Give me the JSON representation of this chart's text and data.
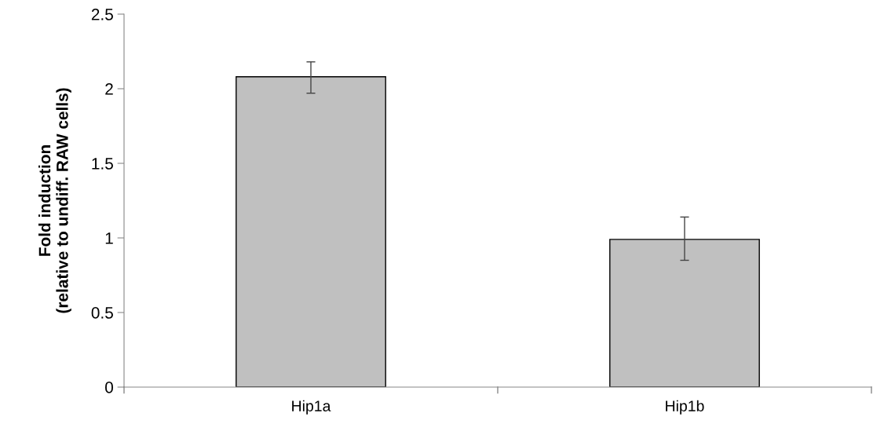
{
  "chart_data": {
    "type": "bar",
    "ylabel": "Fold induction\n(relative to undiff. RAW cells)",
    "categories": [
      "Hip1a",
      "Hip1b"
    ],
    "values": [
      2.08,
      0.99
    ],
    "errors": [
      [
        1.97,
        2.18
      ],
      [
        0.85,
        1.14
      ]
    ],
    "color": "#c0c0c0",
    "ylim": [
      0,
      2.5
    ],
    "yticks": [
      0,
      0.5,
      1,
      1.5,
      2,
      2.5
    ],
    "grid": false,
    "legend": false
  }
}
